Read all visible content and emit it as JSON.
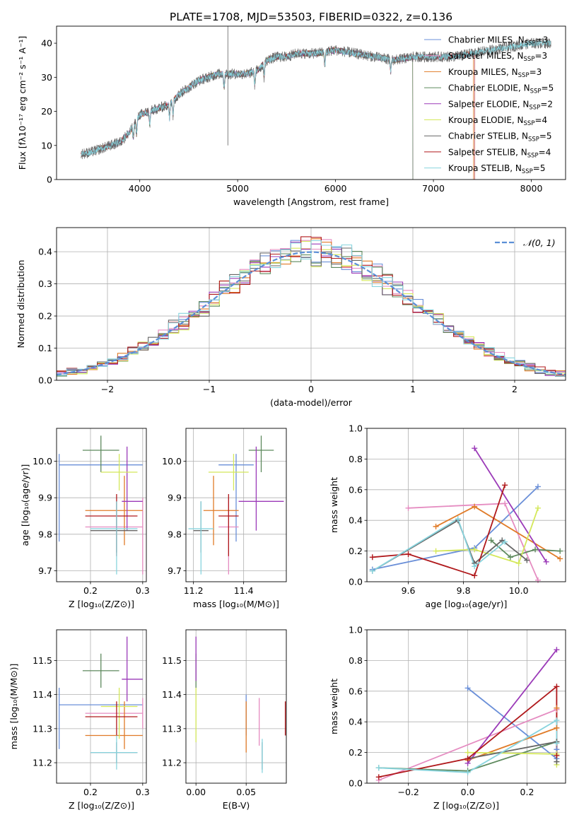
{
  "figure": {
    "title": "PLATE=1708, MJD=53503, FIBERID=0322, z=0.136",
    "colors": {
      "Chabrier MILES": "#6a8fd8",
      "Salpeter MILES": "#e58cc1",
      "Kroupa MILES": "#e07b28",
      "Chabrier ELODIE": "#5e8a5e",
      "Salpeter ELODIE": "#9b3ab8",
      "Kroupa ELODIE": "#d4e85a",
      "Chabrier STELIB": "#666666",
      "Salpeter STELIB": "#b0191c",
      "Kroupa STELIB": "#88d4de",
      "normal": "#5b8fd6"
    }
  },
  "chart_data": [
    {
      "id": "spectrum",
      "type": "line",
      "xlabel": "wavelength [Angstrom, rest frame]",
      "ylabel": "Flux [fλ10⁻¹⁷ erg cm⁻² s⁻¹ A⁻¹]",
      "xlim": [
        3150,
        8350
      ],
      "ylim": [
        0,
        45
      ],
      "xticks": [
        4000,
        5000,
        6000,
        7000,
        8000
      ],
      "yticks": [
        0,
        10,
        20,
        30,
        40
      ],
      "legend_position": "right",
      "legend": [
        "Chabrier MILES, N_SSP=3",
        "Salpeter MILES, N_SSP=3",
        "Kroupa MILES, N_SSP=3",
        "Chabrier ELODIE, N_SSP=5",
        "Salpeter ELODIE, N_SSP=2",
        "Kroupa ELODIE, N_SSP=4",
        "Chabrier STELIB, N_SSP=5",
        "Salpeter STELIB, N_SSP=4",
        "Kroupa STELIB, N_SSP=5"
      ],
      "continuum": {
        "x": [
          3400,
          3500,
          3600,
          3700,
          3800,
          3900,
          4000,
          4100,
          4200,
          4300,
          4400,
          4500,
          4600,
          4700,
          4800,
          4900,
          5000,
          5100,
          5200,
          5300,
          5400,
          5500,
          5600,
          5800,
          6000,
          6200,
          6400,
          6600,
          6800,
          7000,
          7200,
          7400,
          7600,
          7800,
          8000,
          8200
        ],
        "y": [
          7.5,
          8,
          9,
          10,
          11,
          14,
          19,
          20,
          21,
          22,
          25,
          27,
          29,
          30,
          31,
          31,
          31,
          31,
          32,
          35,
          36,
          36,
          37,
          37,
          38,
          37,
          36,
          35,
          36,
          36,
          36,
          37,
          38,
          39,
          40,
          40
        ]
      }
    },
    {
      "id": "residuals",
      "type": "step",
      "xlabel": "(data-model)/error",
      "ylabel": "Normed distribution",
      "xlim": [
        -2.5,
        2.5
      ],
      "ylim": [
        0,
        0.475
      ],
      "xticks": [
        -2,
        -1,
        0,
        1,
        2
      ],
      "yticks": [
        0.0,
        0.1,
        0.2,
        0.3,
        0.4
      ],
      "grid": true,
      "legend": [
        "𝒩(0, 1)"
      ],
      "legend_position": "top-right",
      "bin_width": 0.1
    },
    {
      "id": "age-vs-Z",
      "type": "errorbar",
      "xlabel": "Z [log₁₀(Z/Z⊙)]",
      "ylabel": "age  [log₁₀(age/yr)]",
      "xlim": [
        0.135,
        0.307
      ],
      "ylim": [
        9.67,
        10.09
      ],
      "xticks": [
        0.2,
        0.3
      ],
      "yticks": [
        9.7,
        9.8,
        9.9,
        10.0
      ],
      "grid": true,
      "points": [
        {
          "model": "Chabrier MILES",
          "x": 0.14,
          "y": 9.99,
          "xerr": [
            0.14,
            0.3
          ],
          "yerr": [
            9.78,
            10.02
          ]
        },
        {
          "model": "Salpeter MILES",
          "x": 0.3,
          "y": 9.82,
          "xerr": [
            0.19,
            0.3
          ],
          "yerr": [
            9.69,
            9.9
          ]
        },
        {
          "model": "Kroupa MILES",
          "x": 0.265,
          "y": 9.865,
          "xerr": [
            0.19,
            0.3
          ],
          "yerr": [
            9.77,
            9.96
          ]
        },
        {
          "model": "Chabrier ELODIE",
          "x": 0.22,
          "y": 10.03,
          "xerr": [
            0.185,
            0.255
          ],
          "yerr": [
            9.97,
            10.07
          ]
        },
        {
          "model": "Salpeter ELODIE",
          "x": 0.27,
          "y": 9.89,
          "xerr": [
            0.26,
            0.3
          ],
          "yerr": [
            9.81,
            10.04
          ]
        },
        {
          "model": "Kroupa ELODIE",
          "x": 0.255,
          "y": 9.97,
          "xerr": [
            0.22,
            0.29
          ],
          "yerr": [
            9.92,
            10.02
          ]
        },
        {
          "model": "Chabrier STELIB",
          "x": 0.25,
          "y": 9.81,
          "xerr": [
            0.2,
            0.29
          ],
          "yerr": [
            9.75,
            9.89
          ]
        },
        {
          "model": "Salpeter STELIB",
          "x": 0.25,
          "y": 9.85,
          "xerr": [
            0.19,
            0.29
          ],
          "yerr": [
            9.74,
            9.91
          ]
        },
        {
          "model": "Kroupa STELIB",
          "x": 0.25,
          "y": 9.815,
          "xerr": [
            0.2,
            0.29
          ],
          "yerr": [
            9.69,
            9.89
          ]
        }
      ]
    },
    {
      "id": "age-vs-mass",
      "type": "errorbar",
      "xlabel": "mass [log₁₀(M/M⊙)]",
      "ylabel": "",
      "xlim": [
        11.17,
        11.57
      ],
      "ylim": [
        9.67,
        10.09
      ],
      "xticks": [
        11.2,
        11.4
      ],
      "yticks": [
        9.7,
        9.8,
        9.9,
        10.0
      ],
      "grid": true,
      "points": [
        {
          "model": "Chabrier MILES",
          "x": 11.37,
          "y": 9.99,
          "xerr": [
            11.3,
            11.44
          ],
          "yerr": [
            9.78,
            10.02
          ]
        },
        {
          "model": "Salpeter MILES",
          "x": 11.34,
          "y": 9.82,
          "xerr": [
            11.3,
            11.38
          ],
          "yerr": [
            9.69,
            9.9
          ]
        },
        {
          "model": "Kroupa MILES",
          "x": 11.28,
          "y": 9.865,
          "xerr": [
            11.24,
            11.38
          ],
          "yerr": [
            9.77,
            9.96
          ]
        },
        {
          "model": "Chabrier ELODIE",
          "x": 11.47,
          "y": 10.03,
          "xerr": [
            11.42,
            11.52
          ],
          "yerr": [
            9.97,
            10.07
          ]
        },
        {
          "model": "Salpeter ELODIE",
          "x": 11.45,
          "y": 9.89,
          "xerr": [
            11.38,
            11.56
          ],
          "yerr": [
            9.81,
            10.04
          ]
        },
        {
          "model": "Kroupa ELODIE",
          "x": 11.36,
          "y": 9.97,
          "xerr": [
            11.26,
            11.42
          ],
          "yerr": [
            9.92,
            10.02
          ]
        },
        {
          "model": "Chabrier STELIB",
          "x": 11.23,
          "y": 9.81,
          "xerr": [
            11.2,
            11.26
          ],
          "yerr": [
            9.75,
            9.89
          ]
        },
        {
          "model": "Salpeter STELIB",
          "x": 11.34,
          "y": 9.85,
          "xerr": [
            11.3,
            11.38
          ],
          "yerr": [
            9.74,
            9.91
          ]
        },
        {
          "model": "Kroupa STELIB",
          "x": 11.23,
          "y": 9.815,
          "xerr": [
            11.18,
            11.28
          ],
          "yerr": [
            9.69,
            9.89
          ]
        }
      ]
    },
    {
      "id": "weight-vs-age",
      "type": "line",
      "xlabel": "age  [log₁₀(age/yr)]",
      "ylabel": "mass weight",
      "xlim": [
        9.45,
        10.17
      ],
      "ylim": [
        0,
        1
      ],
      "xticks": [
        9.6,
        9.8,
        10.0
      ],
      "yticks": [
        0.0,
        0.2,
        0.4,
        0.6,
        0.8,
        1.0
      ],
      "grid": true,
      "series": [
        {
          "model": "Chabrier MILES",
          "x": [
            9.47,
            9.84,
            10.07
          ],
          "y": [
            0.08,
            0.22,
            0.62
          ]
        },
        {
          "model": "Salpeter MILES",
          "x": [
            9.6,
            9.95,
            10.07
          ],
          "y": [
            0.48,
            0.51,
            0.01
          ]
        },
        {
          "model": "Kroupa MILES",
          "x": [
            9.7,
            9.84,
            10.15
          ],
          "y": [
            0.36,
            0.49,
            0.15
          ]
        },
        {
          "model": "Chabrier ELODIE",
          "x": [
            9.9,
            9.97,
            10.06,
            10.15
          ],
          "y": [
            0.27,
            0.16,
            0.21,
            0.2
          ]
        },
        {
          "model": "Salpeter ELODIE",
          "x": [
            9.84,
            10.1
          ],
          "y": [
            0.87,
            0.13
          ]
        },
        {
          "model": "Kroupa ELODIE",
          "x": [
            9.7,
            9.84,
            10.0,
            10.07
          ],
          "y": [
            0.2,
            0.21,
            0.12,
            0.48
          ]
        },
        {
          "model": "Chabrier STELIB",
          "x": [
            9.47,
            9.78,
            9.84,
            9.94,
            10.03
          ],
          "y": [
            0.07,
            0.4,
            0.12,
            0.27,
            0.14
          ]
        },
        {
          "model": "Salpeter STELIB",
          "x": [
            9.47,
            9.6,
            9.84,
            9.95
          ],
          "y": [
            0.16,
            0.18,
            0.04,
            0.63
          ]
        },
        {
          "model": "Kroupa STELIB",
          "x": [
            9.47,
            9.78,
            9.84,
            9.95
          ],
          "y": [
            0.07,
            0.41,
            0.1,
            0.26
          ]
        }
      ]
    },
    {
      "id": "mass-vs-Z",
      "type": "errorbar",
      "xlabel": "Z [log₁₀(Z/Z⊙)]",
      "ylabel": "mass [log₁₀(M/M⊙)]",
      "xlim": [
        0.135,
        0.307
      ],
      "ylim": [
        11.14,
        11.59
      ],
      "xticks": [
        0.2,
        0.3
      ],
      "yticks": [
        11.2,
        11.3,
        11.4,
        11.5
      ],
      "grid": true,
      "points": [
        {
          "model": "Chabrier MILES",
          "x": 0.14,
          "y": 11.37,
          "xerr": [
            0.14,
            0.3
          ],
          "yerr": [
            11.24,
            11.42
          ]
        },
        {
          "model": "Salpeter MILES",
          "x": 0.3,
          "y": 11.345,
          "xerr": [
            0.19,
            0.3
          ],
          "yerr": [
            11.3,
            11.39
          ]
        },
        {
          "model": "Kroupa MILES",
          "x": 0.265,
          "y": 11.28,
          "xerr": [
            0.19,
            0.3
          ],
          "yerr": [
            11.24,
            11.38
          ]
        },
        {
          "model": "Chabrier ELODIE",
          "x": 0.22,
          "y": 11.47,
          "xerr": [
            0.185,
            0.255
          ],
          "yerr": [
            11.42,
            11.52
          ]
        },
        {
          "model": "Salpeter ELODIE",
          "x": 0.27,
          "y": 11.445,
          "xerr": [
            0.26,
            0.3
          ],
          "yerr": [
            11.38,
            11.57
          ]
        },
        {
          "model": "Kroupa ELODIE",
          "x": 0.255,
          "y": 11.365,
          "xerr": [
            0.22,
            0.29
          ],
          "yerr": [
            11.27,
            11.42
          ]
        },
        {
          "model": "Chabrier STELIB",
          "x": 0.25,
          "y": 11.23,
          "xerr": [
            0.2,
            0.29
          ],
          "yerr": [
            11.2,
            11.26
          ]
        },
        {
          "model": "Salpeter STELIB",
          "x": 0.25,
          "y": 11.335,
          "xerr": [
            0.19,
            0.29
          ],
          "yerr": [
            11.28,
            11.38
          ]
        },
        {
          "model": "Kroupa STELIB",
          "x": 0.25,
          "y": 11.23,
          "xerr": [
            0.2,
            0.29
          ],
          "yerr": [
            11.18,
            11.28
          ]
        }
      ]
    },
    {
      "id": "mass-vs-EBV",
      "type": "errorbar",
      "xlabel": "E(B-V)",
      "ylabel": "",
      "xlim": [
        -0.01,
        0.09
      ],
      "ylim": [
        11.14,
        11.59
      ],
      "xticks": [
        0.0,
        0.05
      ],
      "yticks": [
        11.2,
        11.3,
        11.4,
        11.5
      ],
      "grid": true,
      "points": [
        {
          "model": "Chabrier MILES",
          "x": 0.05,
          "y": 11.35,
          "yerr": [
            11.28,
            11.4
          ]
        },
        {
          "model": "Salpeter MILES",
          "x": 0.063,
          "y": 11.32,
          "yerr": [
            11.25,
            11.39
          ]
        },
        {
          "model": "Kroupa MILES",
          "x": 0.05,
          "y": 11.3,
          "yerr": [
            11.23,
            11.38
          ]
        },
        {
          "model": "Chabrier ELODIE",
          "x": 0.0,
          "y": 11.47,
          "yerr": [
            11.42,
            11.52
          ]
        },
        {
          "model": "Salpeter ELODIE",
          "x": 0.0,
          "y": 11.5,
          "yerr": [
            11.44,
            11.57
          ]
        },
        {
          "model": "Kroupa ELODIE",
          "x": 0.0,
          "y": 11.34,
          "yerr": [
            11.26,
            11.42
          ]
        },
        {
          "model": "Chabrier STELIB",
          "x": 0.066,
          "y": 11.22,
          "yerr": [
            11.18,
            11.26
          ]
        },
        {
          "model": "Salpeter STELIB",
          "x": 0.089,
          "y": 11.33,
          "yerr": [
            11.28,
            11.38
          ]
        },
        {
          "model": "Kroupa STELIB",
          "x": 0.066,
          "y": 11.22,
          "yerr": [
            11.17,
            11.27
          ]
        }
      ]
    },
    {
      "id": "weight-vs-Z",
      "type": "line",
      "xlabel": "Z [log₁₀(Z/Z⊙)]",
      "ylabel": "mass weight",
      "xlim": [
        -0.34,
        0.33
      ],
      "ylim": [
        0,
        1
      ],
      "xticks": [
        -0.2,
        0.0,
        0.2
      ],
      "yticks": [
        0.0,
        0.2,
        0.4,
        0.6,
        0.8,
        1.0
      ],
      "grid": true,
      "series": [
        {
          "model": "Chabrier MILES",
          "x": [
            0.0,
            0.3,
            0.3
          ],
          "y": [
            0.62,
            0.16,
            0.22
          ]
        },
        {
          "model": "Salpeter MILES",
          "x": [
            -0.3,
            0.3
          ],
          "y": [
            0.02,
            0.48
          ]
        },
        {
          "model": "Kroupa MILES",
          "x": [
            0.0,
            0.3,
            0.3
          ],
          "y": [
            0.15,
            0.36,
            0.49
          ]
        },
        {
          "model": "Chabrier ELODIE",
          "x": [
            -0.3,
            0.0,
            0.3
          ],
          "y": [
            0.1,
            0.08,
            0.27
          ]
        },
        {
          "model": "Salpeter ELODIE",
          "x": [
            0.0,
            0.3
          ],
          "y": [
            0.13,
            0.87
          ]
        },
        {
          "model": "Kroupa ELODIE",
          "x": [
            0.0,
            0.3,
            0.3
          ],
          "y": [
            0.2,
            0.19,
            0.12
          ]
        },
        {
          "model": "Chabrier STELIB",
          "x": [
            0.0,
            0.3,
            0.3
          ],
          "y": [
            0.16,
            0.27,
            0.14
          ]
        },
        {
          "model": "Salpeter STELIB",
          "x": [
            -0.3,
            0.0,
            0.3,
            0.3
          ],
          "y": [
            0.04,
            0.16,
            0.63,
            0.18
          ]
        },
        {
          "model": "Kroupa STELIB",
          "x": [
            -0.3,
            0.0,
            0.3,
            0.3
          ],
          "y": [
            0.1,
            0.07,
            0.41,
            0.26
          ]
        }
      ]
    }
  ]
}
